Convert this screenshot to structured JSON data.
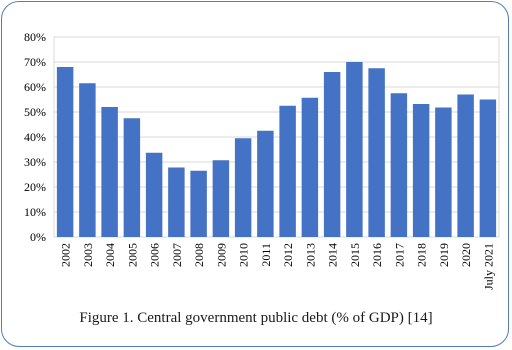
{
  "chart_data": {
    "type": "bar",
    "categories": [
      "2002",
      "2003",
      "2004",
      "2005",
      "2006",
      "2007",
      "2008",
      "2009",
      "2010",
      "2011",
      "2012",
      "2013",
      "2014",
      "2015",
      "2016",
      "2017",
      "2018",
      "2019",
      "2020",
      "July 2021"
    ],
    "values": [
      68.0,
      61.5,
      52.0,
      47.5,
      33.7,
      27.8,
      26.5,
      30.7,
      39.5,
      42.5,
      52.5,
      55.7,
      66.0,
      70.0,
      67.5,
      57.5,
      53.2,
      51.8,
      57.0,
      55.0
    ],
    "ylim": [
      0,
      80
    ],
    "yticks": [
      "0%",
      "10%",
      "20%",
      "30%",
      "40%",
      "50%",
      "60%",
      "70%",
      "80%"
    ],
    "ytick_values": [
      0,
      10,
      20,
      30,
      40,
      50,
      60,
      70,
      80
    ],
    "grid": true,
    "bar_color": "#4472c4",
    "grid_color": "#d9d9d9"
  },
  "caption": "Figure 1. Central  government public debt (% of GDP) [14]",
  "colors": {
    "frame_border": "#4f7fb5"
  }
}
